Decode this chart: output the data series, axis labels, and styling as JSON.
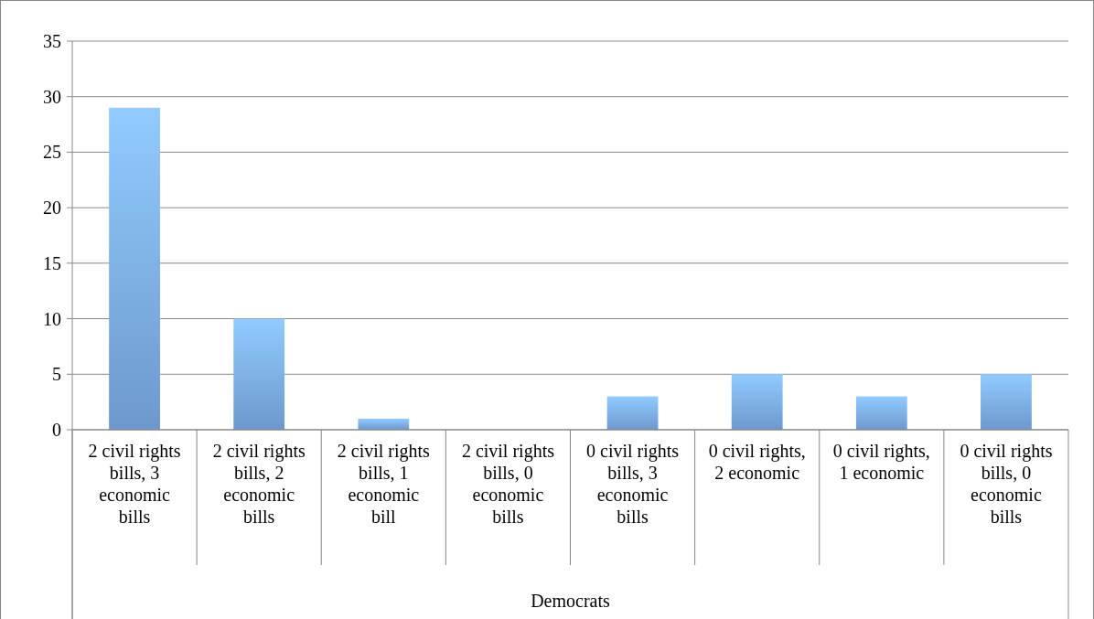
{
  "chart_data": {
    "type": "bar",
    "xlabel": "Democrats",
    "categories": [
      "2 civil rights bills, 3 economic bills",
      "2 civil rights bills, 2 economic bills",
      "2 civil rights bills, 1 economic bill",
      "2 civil rights bills, 0 economic bills",
      "0 civil rights bills, 3 economic bills",
      "0 civil rights, 2 economic",
      "0 civil rights, 1 economic",
      "0 civil rights bills, 0 economic bills"
    ],
    "values": [
      29,
      10,
      1,
      0,
      3,
      5,
      3,
      5
    ],
    "color": "#80b3f2",
    "ylim": [
      0,
      35
    ],
    "yticks": [
      0,
      5,
      10,
      15,
      20,
      25,
      30,
      35
    ],
    "grid": "y"
  }
}
